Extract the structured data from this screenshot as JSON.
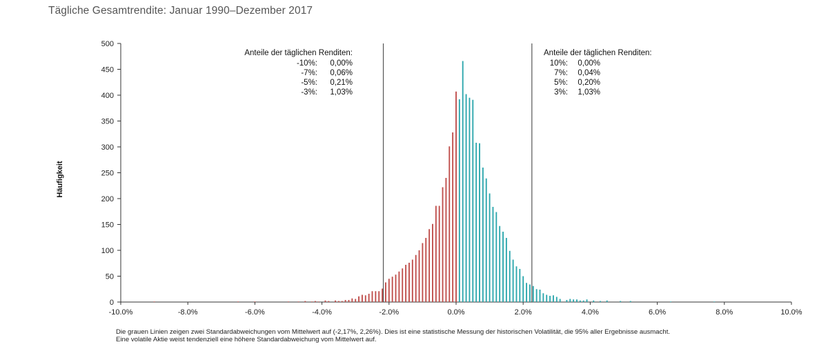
{
  "title": "Tägliche Gesamtrendite: Januar 1990–Dezember 2017",
  "footnote": {
    "line1": "Die grauen Linien zeigen zwei Standardabweichungen vom Mittelwert auf (-2,17%, 2,26%). Dies ist eine statistische Messung der historischen Volatilität, die 95% aller Ergebnisse ausmacht.",
    "line2": "Eine volatile Aktie weist tendenziell eine höhere Standardabweichung vom Mittelwert auf."
  },
  "annotations": {
    "left": {
      "heading": "Anteile der täglichen Renditen:",
      "rows": [
        {
          "threshold": "-10%:",
          "value": "0,00%"
        },
        {
          "threshold": "-7%:",
          "value": "0,06%"
        },
        {
          "threshold": "-5%:",
          "value": "0,21%"
        },
        {
          "threshold": "-3%:",
          "value": "1,03%"
        }
      ]
    },
    "right": {
      "heading": "Anteile der täglichen Renditen:",
      "rows": [
        {
          "threshold": "10%:",
          "value": "0,00%"
        },
        {
          "threshold": "7%:",
          "value": "0,04%"
        },
        {
          "threshold": "5%:",
          "value": "0,20%"
        },
        {
          "threshold": "3%:",
          "value": "1,03%"
        }
      ]
    }
  },
  "colors": {
    "negative": "#c0504d",
    "positive": "#2fa8ae",
    "reference_line": "#555555",
    "axis": "#333333"
  },
  "chart_data": {
    "type": "bar",
    "title": "Tägliche Gesamtrendite: Januar 1990–Dezember 2017",
    "xlabel": "",
    "ylabel": "Häufigkeit",
    "xlim": [
      -10,
      10
    ],
    "ylim": [
      0,
      500
    ],
    "x_ticks": [
      -10,
      -8,
      -6,
      -4,
      -2,
      0,
      2,
      4,
      6,
      8,
      10
    ],
    "x_tick_labels": [
      "-10.0%",
      "-8.0%",
      "-6.0%",
      "-4.0%",
      "-2.0%",
      "0.0%",
      "2.0%",
      "4.0%",
      "6.0%",
      "8.0%",
      "10.0%"
    ],
    "y_ticks": [
      0,
      50,
      100,
      150,
      200,
      250,
      300,
      350,
      400,
      450,
      500
    ],
    "y_tick_labels": [
      "0",
      "50",
      "100",
      "150",
      "200",
      "250",
      "300",
      "350",
      "400",
      "450",
      "500"
    ],
    "reference_lines_x": [
      -2.17,
      2.26
    ],
    "grid": false,
    "legend": "none",
    "bin_width": 0.1,
    "negative_bins": {
      "x": [
        -9.0,
        -6.5,
        -6.0,
        -5.0,
        -4.7,
        -4.5,
        -4.3,
        -4.2,
        -4.1,
        -3.9,
        -3.8,
        -3.6,
        -3.5,
        -3.4,
        -3.3,
        -3.2,
        -3.1,
        -3.0,
        -2.9,
        -2.8,
        -2.7,
        -2.6,
        -2.5,
        -2.4,
        -2.3,
        -2.2,
        -2.1,
        -2.0,
        -1.9,
        -1.8,
        -1.7,
        -1.6,
        -1.5,
        -1.4,
        -1.3,
        -1.2,
        -1.1,
        -1.0,
        -0.9,
        -0.8,
        -0.7,
        -0.6,
        -0.5,
        -0.4,
        -0.3,
        -0.2,
        -0.1,
        0.0
      ],
      "values": [
        1,
        1,
        1,
        1,
        1,
        2,
        1,
        2,
        1,
        3,
        2,
        3,
        2,
        2,
        4,
        4,
        7,
        6,
        11,
        14,
        13,
        16,
        21,
        21,
        21,
        26,
        38,
        45,
        49,
        53,
        59,
        65,
        72,
        76,
        82,
        91,
        100,
        114,
        124,
        141,
        151,
        186,
        186,
        222,
        240,
        301,
        328,
        407
      ]
    },
    "positive_bins": {
      "x": [
        0.1,
        0.2,
        0.3,
        0.4,
        0.5,
        0.6,
        0.7,
        0.8,
        0.9,
        1.0,
        1.1,
        1.2,
        1.3,
        1.4,
        1.5,
        1.6,
        1.7,
        1.8,
        1.9,
        2.0,
        2.1,
        2.2,
        2.3,
        2.4,
        2.5,
        2.6,
        2.7,
        2.8,
        2.9,
        3.0,
        3.1,
        3.3,
        3.4,
        3.5,
        3.6,
        3.7,
        3.8,
        3.9,
        4.1,
        4.3,
        4.5,
        4.9,
        5.2,
        6.4,
        7.7
      ],
      "values": [
        392,
        466,
        402,
        395,
        391,
        308,
        307,
        260,
        239,
        210,
        184,
        174,
        147,
        136,
        124,
        99,
        82,
        69,
        64,
        50,
        37,
        34,
        31,
        25,
        24,
        17,
        14,
        12,
        13,
        10,
        6,
        4,
        6,
        5,
        5,
        3,
        3,
        5,
        3,
        2,
        3,
        2,
        2,
        1,
        1
      ]
    }
  }
}
